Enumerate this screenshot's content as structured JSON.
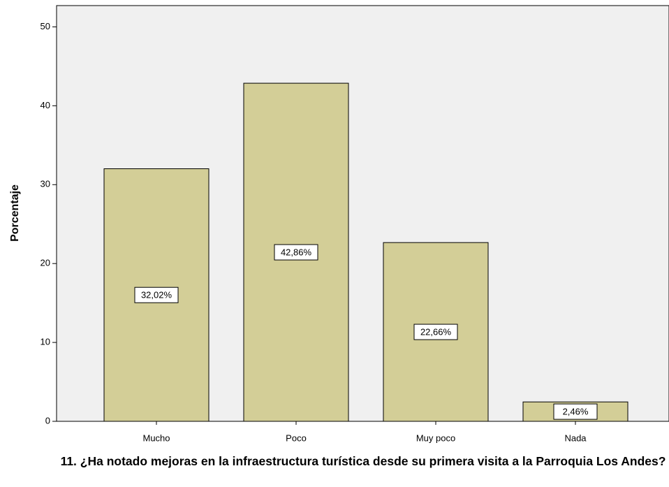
{
  "chart_data": {
    "type": "bar",
    "xlabel": "11. ¿Ha notado mejoras en la infraestructura turística desde su primera visita a la Parroquia Los Andes?",
    "ylabel": "Porcentaje",
    "categories": [
      "Mucho",
      "Poco",
      "Muy poco",
      "Nada"
    ],
    "values": [
      32.02,
      42.86,
      22.66,
      2.46
    ],
    "value_labels": [
      "32,02%",
      "42,86%",
      "22,66%",
      "2,46%"
    ],
    "color": "#d3ce97",
    "ylim": [
      0,
      52.7
    ],
    "yticks": [
      0,
      10,
      20,
      30,
      40,
      50
    ]
  }
}
